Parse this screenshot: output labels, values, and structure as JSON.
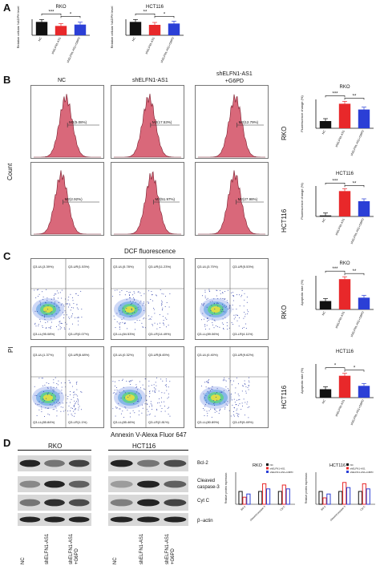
{
  "panels": {
    "A": {
      "letter": "A",
      "charts": [
        "RKO",
        "HCT116"
      ],
      "ylabel": "Relative cellular NADPH level",
      "cats": [
        "NC",
        "shELFN1-AS1",
        "shELFN1-AS1+G6PD"
      ],
      "sig_rko": [
        "***",
        "*"
      ],
      "sig_hct": [
        "**",
        "*"
      ]
    },
    "B": {
      "letter": "B",
      "cols": [
        "NC",
        "shELFN1-AS1",
        "shELFN1-AS1\n+G6PD"
      ],
      "rows": [
        "RKO",
        "HCT116"
      ],
      "ylabel": "Count",
      "xlabel": "DCF fluorescence",
      "gates": [
        [
          "M2(5.08%)",
          "M2(17.53%)",
          "M2(12.79%)"
        ],
        [
          "M2(2.92%)",
          "M2(51.97%)",
          "M2(27.98%)"
        ]
      ],
      "bar_ylabel": "Fluorescence change (%)",
      "sig_rko": [
        "***",
        "**"
      ],
      "sig_hct": [
        "***",
        "**"
      ]
    },
    "C": {
      "letter": "C",
      "ylabel": "PI",
      "xlabel": "Annexin V-Alexa Fluor 647",
      "rows": [
        "RKO",
        "HCT116"
      ],
      "quads": [
        [
          [
            "Q3-UL(3.39%)",
            "Q3-UR(1.53%)",
            "Q3-LL(95.08%)",
            "Q3-LR(0.07%)"
          ],
          [
            "Q3-UL(5.78%)",
            "Q3-UR(11.23%)",
            "Q3-LL(84.53%)",
            "Q3-LR(14.49%)"
          ],
          [
            "Q3-UL(3.70%)",
            "Q3-UR(5.53%)",
            "Q3-LL(89.06%)",
            "Q3-LR(4.11%)"
          ]
        ],
        [
          [
            "Q3-UL(1.37%)",
            "Q3-UR(8.48%)",
            "Q3-LL(85.84%)",
            "Q3-LR(1.1%)"
          ],
          [
            "Q3-UL(0.32%)",
            "Q3-UR(8.45%)",
            "Q3-LL(85.46%)",
            "Q3-LR(2.81%)"
          ],
          [
            "Q3-UL(0.40%)",
            "Q3-UR(9.62%)",
            "Q3-LL(80.89%)",
            "Q3-LR(9.49%)"
          ]
        ]
      ],
      "bar_ylabel": "Apoptotic rate (%)",
      "sig_rko": [
        "***",
        "**"
      ],
      "sig_hct": [
        "*",
        "*"
      ]
    },
    "D": {
      "letter": "D",
      "groups": [
        "RKO",
        "HCT116"
      ],
      "proteins": [
        "Bcl-2",
        "Cleaved\ncaspase-3",
        "Cyt C",
        "β−actin"
      ],
      "lanes": [
        "NC",
        "shELFN1-AS1",
        "shELFN1-AS1\n+G6PD"
      ],
      "chart_titles": [
        "RKO",
        "HCT116"
      ],
      "bar_ylabel": "Relative protein expression",
      "legend": [
        "NC",
        "shELFN1-AS1",
        "shELFN1-AS1+G6PD"
      ],
      "xcats": [
        "Bcl-2",
        "Cleaved caspase-3",
        "Cyt C"
      ]
    }
  },
  "colors": {
    "nc": "#111111",
    "sh": "#e8282a",
    "g6pd": "#2b3fd6",
    "hist": "#d9687a"
  },
  "chart_data": [
    {
      "type": "bar",
      "title": "RKO",
      "ylabel": "Relative cellular NADPH level",
      "categories": [
        "NC",
        "shELFN1-AS1",
        "shELFN1-AS1+G6PD"
      ],
      "values": [
        1.0,
        0.7,
        0.8
      ],
      "ylim": [
        0,
        1.2
      ]
    },
    {
      "type": "bar",
      "title": "HCT116",
      "ylabel": "Relative cellular NADPH level",
      "categories": [
        "NC",
        "shELFN1-AS1",
        "shELFN1-AS1+G6PD"
      ],
      "values": [
        1.0,
        0.78,
        0.88
      ],
      "ylim": [
        0,
        1.2
      ]
    },
    {
      "type": "bar",
      "title": "RKO",
      "ylabel": "Fluorescence change (%)",
      "categories": [
        "NC",
        "shELFN1-AS1",
        "shELFN1-AS1+G6PD"
      ],
      "values": [
        5,
        17,
        13
      ],
      "ylim": [
        0,
        20
      ]
    },
    {
      "type": "bar",
      "title": "HCT116",
      "ylabel": "Fluorescence change (%)",
      "categories": [
        "NC",
        "shELFN1-AS1",
        "shELFN1-AS1+G6PD"
      ],
      "values": [
        2,
        50,
        30
      ],
      "ylim": [
        0,
        60
      ]
    },
    {
      "type": "bar",
      "title": "RKO",
      "ylabel": "Apoptotic rate (%)",
      "categories": [
        "NC",
        "shELFN1-AS1",
        "shELFN1-AS1+G6PD"
      ],
      "values": [
        5,
        18,
        7
      ],
      "ylim": [
        0,
        20
      ]
    },
    {
      "type": "bar",
      "title": "HCT116",
      "ylabel": "Apoptotic rate (%)",
      "categories": [
        "NC",
        "shELFN1-AS1",
        "shELFN1-AS1+G6PD"
      ],
      "values": [
        5,
        13,
        7
      ],
      "ylim": [
        0,
        20
      ]
    },
    {
      "type": "bar",
      "title": "RKO",
      "ylabel": "Relative protein expression",
      "categories": [
        "Bcl-2",
        "Cleaved caspase-3",
        "Cyt C"
      ],
      "series": [
        {
          "name": "NC",
          "values": [
            1.0,
            1.0,
            1.0
          ]
        },
        {
          "name": "shELFN1-AS1",
          "values": [
            0.55,
            1.6,
            1.5
          ]
        },
        {
          "name": "shELFN1-AS1+G6PD",
          "values": [
            0.8,
            1.2,
            1.2
          ]
        }
      ],
      "ylim": [
        0,
        2.5
      ]
    },
    {
      "type": "bar",
      "title": "HCT116",
      "ylabel": "Relative protein expression",
      "categories": [
        "Bcl-2",
        "Cleaved caspase-3",
        "Cyt C"
      ],
      "series": [
        {
          "name": "NC",
          "values": [
            1.0,
            1.0,
            1.0
          ]
        },
        {
          "name": "shELFN1-AS1",
          "values": [
            0.5,
            1.7,
            1.6
          ]
        },
        {
          "name": "shELFN1-AS1+G6PD",
          "values": [
            0.8,
            1.3,
            1.2
          ]
        }
      ],
      "ylim": [
        0,
        2.5
      ]
    }
  ]
}
